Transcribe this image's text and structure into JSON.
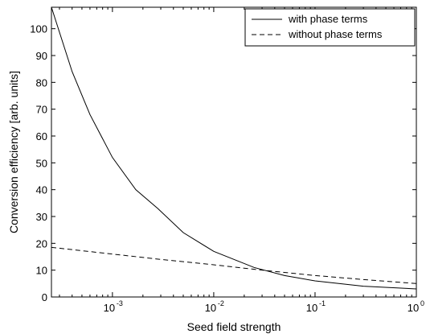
{
  "chart_data": {
    "type": "line",
    "title": "",
    "xlabel": "Seed field strength",
    "ylabel": "Conversion efficiency [arb. units]",
    "xscale": "log",
    "xlim": [
      0.00025,
      1
    ],
    "ylim": [
      0,
      108
    ],
    "grid": false,
    "legend_position": "top-right",
    "x_ticks": [
      {
        "base": "10",
        "exp": "-3",
        "value": 0.001
      },
      {
        "base": "10",
        "exp": "-2",
        "value": 0.01
      },
      {
        "base": "10",
        "exp": "-1",
        "value": 0.1
      },
      {
        "base": "10",
        "exp": "0",
        "value": 1
      }
    ],
    "y_ticks": [
      "0",
      "10",
      "20",
      "30",
      "40",
      "50",
      "60",
      "70",
      "80",
      "90",
      "100"
    ],
    "series": [
      {
        "name": "with phase terms",
        "style": "solid",
        "color": "#000000",
        "x": [
          0.00025,
          0.0004,
          0.0006,
          0.001,
          0.0017,
          0.0028,
          0.005,
          0.01,
          0.025,
          0.05,
          0.1,
          0.3,
          1
        ],
        "y": [
          108,
          84,
          68,
          52,
          40,
          33,
          24,
          17,
          11,
          8,
          6,
          4,
          3
        ]
      },
      {
        "name": "without phase terms",
        "style": "dashed",
        "color": "#000000",
        "x": [
          0.00025,
          0.001,
          0.003,
          0.01,
          0.03,
          0.1,
          0.3,
          1
        ],
        "y": [
          18.5,
          16,
          14,
          12,
          10,
          8,
          6.5,
          5
        ]
      }
    ]
  }
}
